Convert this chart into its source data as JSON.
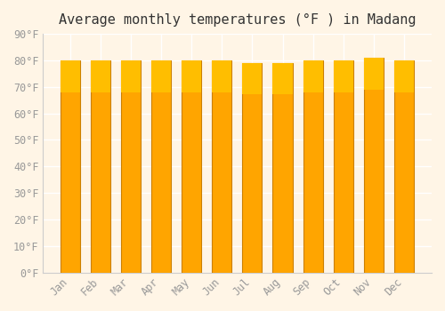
{
  "title": "Average monthly temperatures (°F ) in Madang",
  "months": [
    "Jan",
    "Feb",
    "Mar",
    "Apr",
    "May",
    "Jun",
    "Jul",
    "Aug",
    "Sep",
    "Oct",
    "Nov",
    "Dec"
  ],
  "values": [
    80,
    80,
    80,
    80,
    80,
    80,
    79,
    79,
    80,
    80,
    81,
    80
  ],
  "bar_color_face": "#FFA500",
  "bar_color_edge": "#CC8000",
  "bar_color_gradient_top": "#FFBE00",
  "background_color": "#FFF5E6",
  "plot_bg_color": "#FFF5E6",
  "grid_color": "#FFFFFF",
  "tick_label_color": "#999999",
  "title_color": "#333333",
  "ylim": [
    0,
    90
  ],
  "yticks": [
    0,
    10,
    20,
    30,
    40,
    50,
    60,
    70,
    80,
    90
  ],
  "ytick_labels": [
    "0°F",
    "10°F",
    "20°F",
    "30°F",
    "40°F",
    "50°F",
    "60°F",
    "70°F",
    "80°F",
    "90°F"
  ],
  "title_fontsize": 11,
  "tick_fontsize": 8.5
}
